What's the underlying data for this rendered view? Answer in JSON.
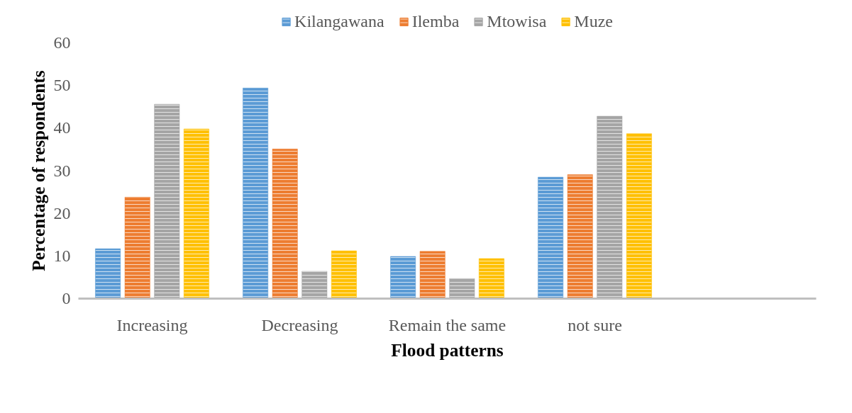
{
  "chart_data": {
    "type": "bar",
    "xlabel": "Flood patterns",
    "ylabel": "Percentage of respondents",
    "categories": [
      "Increasing",
      "Decreasing",
      "Remain the same",
      "not sure",
      null
    ],
    "series": [
      {
        "name": "Kilangawana",
        "color": "#5b9bd5",
        "values": [
          11.7,
          49.4,
          9.9,
          28.5,
          null
        ]
      },
      {
        "name": "Ilemba",
        "color": "#ed7d31",
        "values": [
          23.8,
          35.1,
          11.1,
          29.1,
          null
        ]
      },
      {
        "name": "Mtowisa",
        "color": "#a5a5a5",
        "values": [
          45.6,
          6.4,
          4.7,
          42.8,
          null
        ]
      },
      {
        "name": "Muze",
        "color": "#ffc000",
        "values": [
          39.8,
          11.2,
          9.4,
          38.7,
          null
        ]
      }
    ],
    "ylim": [
      0,
      60
    ],
    "yticks": [
      0,
      10,
      20,
      30,
      40,
      50,
      60
    ],
    "grid": false,
    "legend": "top"
  }
}
